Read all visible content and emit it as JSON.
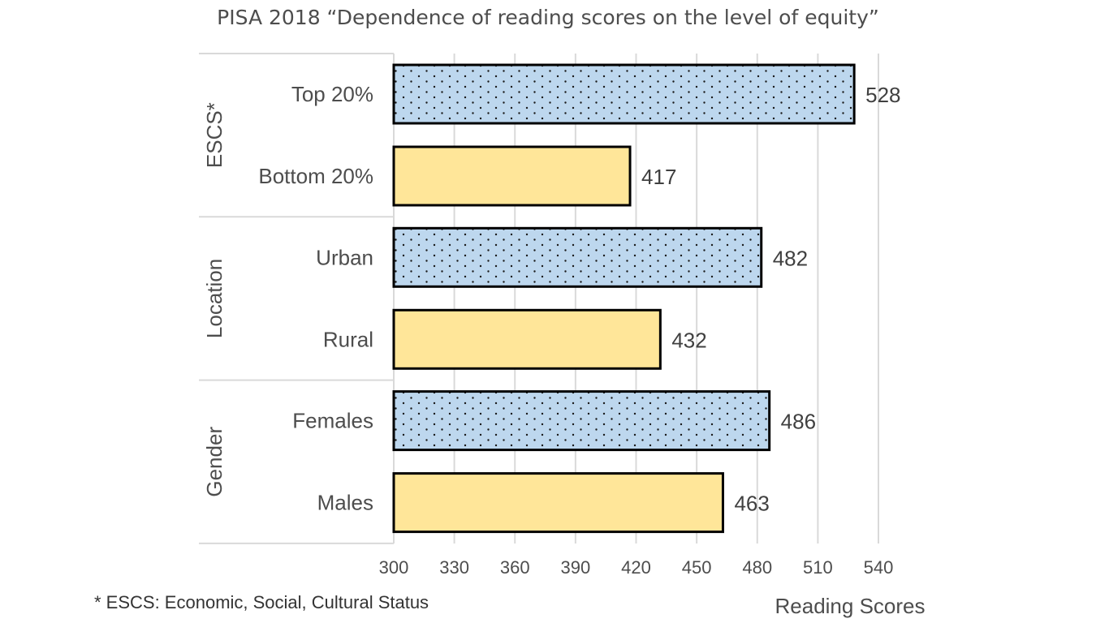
{
  "chart_data": {
    "type": "bar",
    "orientation": "horizontal",
    "title": "PISA 2018 “Dependence of reading scores on the level of equity”",
    "xlabel": "Reading Scores",
    "xlim": [
      300,
      540
    ],
    "xticks": [
      300,
      330,
      360,
      390,
      420,
      450,
      480,
      510,
      540
    ],
    "grid": true,
    "groups": [
      {
        "name": "ESCS*",
        "categories": [
          "Top 20%",
          "Bottom 20%"
        ],
        "values": [
          528,
          417
        ]
      },
      {
        "name": "Location",
        "categories": [
          "Urban",
          "Rural"
        ],
        "values": [
          482,
          432
        ]
      },
      {
        "name": "Gender",
        "categories": [
          "Females",
          "Males"
        ],
        "values": [
          486,
          463
        ]
      }
    ],
    "footnote": "* ESCS: Economic, Social, Cultural Status",
    "colors": {
      "upper_bar_fill": "#bdd7ee",
      "upper_bar_pattern": "dotted",
      "lower_bar_fill": "#ffe699",
      "bar_border": "#000000",
      "gridline": "#d9d9d9",
      "group_divider": "#d9d9d9"
    }
  }
}
